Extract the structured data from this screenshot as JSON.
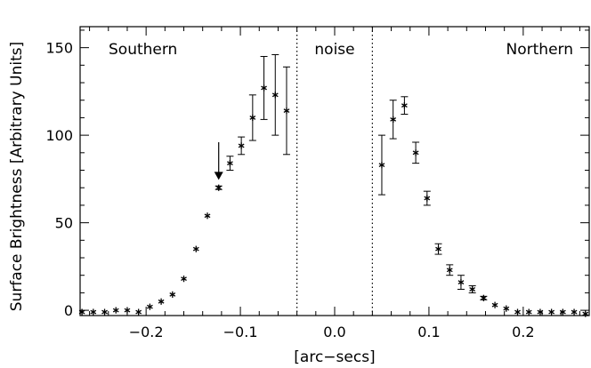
{
  "chart_data": {
    "type": "scatter",
    "xlabel": "[arc−secs]",
    "ylabel": "Surface Brightness [Arbitrary Units]",
    "xlim": [
      -0.27,
      0.27
    ],
    "ylim": [
      -3,
      162
    ],
    "x_ticks": [
      -0.2,
      -0.1,
      0.0,
      0.1,
      0.2
    ],
    "x_tick_labels": [
      "−0.2",
      "−0.1",
      "0.0",
      "0.1",
      "0.2"
    ],
    "y_ticks": [
      0,
      50,
      100,
      150
    ],
    "y_tick_labels": [
      "0",
      "50",
      "100",
      "150"
    ],
    "region_boundaries": [
      -0.04,
      0.04
    ],
    "region_labels": [
      "Southern",
      "noise",
      "Northern"
    ],
    "upper_limit_arrow": {
      "x": -0.123,
      "y_from": 96,
      "y_to": 75
    },
    "series": [
      {
        "points": [
          {
            "x": -0.268,
            "y": -1,
            "err": 0
          },
          {
            "x": -0.256,
            "y": -1,
            "err": 0
          },
          {
            "x": -0.244,
            "y": -1,
            "err": 0
          },
          {
            "x": -0.232,
            "y": 0,
            "err": 0
          },
          {
            "x": -0.22,
            "y": 0,
            "err": 0
          },
          {
            "x": -0.208,
            "y": -1,
            "err": 0
          },
          {
            "x": -0.196,
            "y": 2,
            "err": 0
          },
          {
            "x": -0.184,
            "y": 5,
            "err": 0
          },
          {
            "x": -0.172,
            "y": 9,
            "err": 0
          },
          {
            "x": -0.16,
            "y": 18,
            "err": 0
          },
          {
            "x": -0.147,
            "y": 35,
            "err": 0
          },
          {
            "x": -0.135,
            "y": 54,
            "err": 0
          },
          {
            "x": -0.123,
            "y": 70,
            "err": 1
          },
          {
            "x": -0.111,
            "y": 84,
            "err": 4
          },
          {
            "x": -0.099,
            "y": 94,
            "err": 5
          },
          {
            "x": -0.087,
            "y": 110,
            "err": 13
          },
          {
            "x": -0.075,
            "y": 127,
            "err": 18
          },
          {
            "x": -0.063,
            "y": 123,
            "err": 23
          },
          {
            "x": -0.051,
            "y": 114,
            "err": 25
          },
          {
            "x": 0.05,
            "y": 83,
            "err": 17
          },
          {
            "x": 0.062,
            "y": 109,
            "err": 11
          },
          {
            "x": 0.074,
            "y": 117,
            "err": 5
          },
          {
            "x": 0.086,
            "y": 90,
            "err": 6
          },
          {
            "x": 0.098,
            "y": 64,
            "err": 4
          },
          {
            "x": 0.11,
            "y": 35,
            "err": 3
          },
          {
            "x": 0.122,
            "y": 23,
            "err": 3
          },
          {
            "x": 0.134,
            "y": 16,
            "err": 4
          },
          {
            "x": 0.146,
            "y": 12,
            "err": 2
          },
          {
            "x": 0.158,
            "y": 7,
            "err": 1
          },
          {
            "x": 0.17,
            "y": 3,
            "err": 0
          },
          {
            "x": 0.182,
            "y": 1,
            "err": 0
          },
          {
            "x": 0.194,
            "y": -1,
            "err": 0
          },
          {
            "x": 0.206,
            "y": -1,
            "err": 0
          },
          {
            "x": 0.218,
            "y": -1,
            "err": 0
          },
          {
            "x": 0.23,
            "y": -1,
            "err": 0
          },
          {
            "x": 0.242,
            "y": -1,
            "err": 0
          },
          {
            "x": 0.254,
            "y": -1,
            "err": 0
          },
          {
            "x": 0.266,
            "y": -2,
            "err": 0
          }
        ]
      }
    ]
  }
}
